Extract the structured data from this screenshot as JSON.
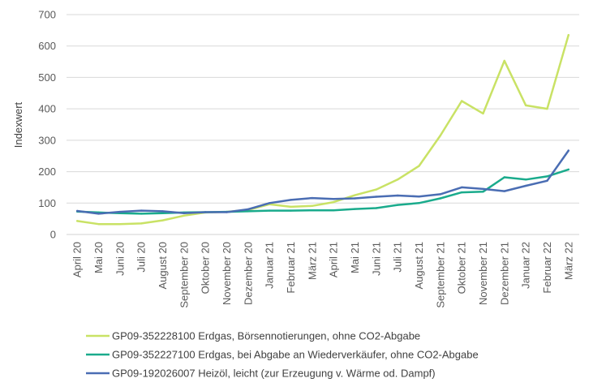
{
  "chart_data": {
    "type": "line",
    "title": "",
    "xlabel": "",
    "ylabel": "Indexwert",
    "ylim": [
      0,
      700
    ],
    "yticks": [
      0,
      100,
      200,
      300,
      400,
      500,
      600,
      700
    ],
    "grid": true,
    "legend_position": "bottom",
    "categories": [
      "April 20",
      "Mai 20",
      "Juni 20",
      "Juli 20",
      "August 20",
      "September 20",
      "Oktober 20",
      "November 20",
      "Dezember 20",
      "Januar 21",
      "Februar 21",
      "März 21",
      "April 21",
      "Mai 21",
      "Juni 21",
      "Juli 21",
      "August 21",
      "September 21",
      "Oktober 21",
      "November 21",
      "Dezember 21",
      "Januar 22",
      "Februar 22",
      "März 22"
    ],
    "series": [
      {
        "name": "GP09-352228100 Erdgas, Börsennotierungen, ohne CO2-Abgabe",
        "color": "#c9e265",
        "values": [
          43,
          33,
          33,
          35,
          45,
          60,
          70,
          72,
          78,
          96,
          88,
          91,
          103,
          125,
          143,
          175,
          218,
          315,
          425,
          385,
          553,
          411,
          400,
          635
        ]
      },
      {
        "name": "GP09-352227100 Erdgas, bei Abgabe an Wiederverkäufer, ohne CO2-Abgabe",
        "color": "#1aab8c",
        "values": [
          73,
          70,
          68,
          66,
          68,
          70,
          71,
          72,
          74,
          76,
          76,
          77,
          77,
          81,
          84,
          94,
          100,
          115,
          134,
          136,
          182,
          175,
          185,
          207
        ]
      },
      {
        "name": "GP09-192026007 Heizöl, leicht (zur Erzeugung v. Wärme od. Dampf)",
        "color": "#4a6db3",
        "values": [
          75,
          66,
          72,
          76,
          74,
          68,
          71,
          71,
          80,
          100,
          110,
          116,
          113,
          115,
          120,
          124,
          121,
          128,
          150,
          145,
          138,
          155,
          171,
          267
        ]
      }
    ]
  }
}
